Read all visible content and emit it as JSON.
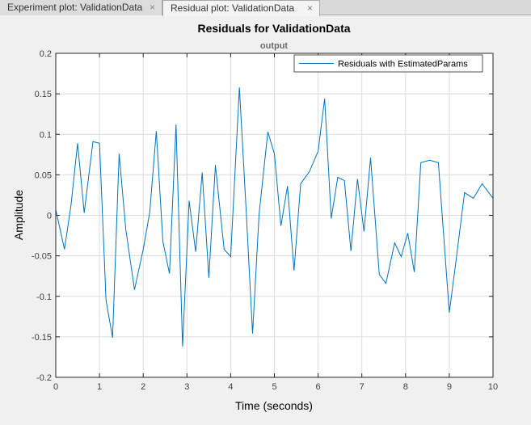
{
  "tabs": [
    {
      "label": "Experiment plot: ValidationData",
      "close_icon": "×"
    },
    {
      "label": "Residual plot: ValidationData",
      "close_icon": "×"
    }
  ],
  "chart_data": {
    "type": "line",
    "title": "Residuals for ValidationData",
    "subtitle": "output",
    "xlabel": "Time (seconds)",
    "ylabel": "Amplitude",
    "xlim": [
      0,
      10
    ],
    "ylim": [
      -0.2,
      0.2
    ],
    "xticks": [
      0,
      1,
      2,
      3,
      4,
      5,
      6,
      7,
      8,
      9,
      10
    ],
    "xtick_labels": [
      "0",
      "1",
      "2",
      "3",
      "4",
      "5",
      "6",
      "7",
      "8",
      "9",
      "10"
    ],
    "yticks": [
      -0.2,
      -0.15,
      -0.1,
      -0.05,
      0,
      0.05,
      0.1,
      0.15,
      0.2
    ],
    "ytick_labels": [
      "-0.2",
      "-0.15",
      "-0.1",
      "-0.05",
      "0",
      "0.05",
      "0.1",
      "0.15",
      "0.2"
    ],
    "grid": true,
    "legend_position": "top-right",
    "line_color": "#0072bd",
    "series": [
      {
        "name": "Residuals with EstimatedParams",
        "x": [
          0,
          0.2,
          0.35,
          0.5,
          0.65,
          0.85,
          1,
          1.15,
          1.3,
          1.45,
          1.6,
          1.8,
          2,
          2.15,
          2.3,
          2.45,
          2.6,
          2.75,
          2.9,
          3.05,
          3.2,
          3.35,
          3.5,
          3.65,
          3.85,
          4,
          4.2,
          4.35,
          4.5,
          4.65,
          4.85,
          5,
          5.15,
          5.3,
          5.45,
          5.6,
          5.8,
          6,
          6.15,
          6.3,
          6.45,
          6.6,
          6.75,
          6.9,
          7.05,
          7.2,
          7.4,
          7.55,
          7.75,
          7.9,
          8.05,
          8.2,
          8.35,
          8.55,
          8.75,
          9,
          9.15,
          9.35,
          9.55,
          9.75,
          10
        ],
        "y": [
          0.007,
          -0.042,
          0.013,
          0.089,
          0.003,
          0.091,
          0.089,
          -0.105,
          -0.151,
          0.076,
          -0.017,
          -0.092,
          -0.042,
          0.004,
          0.104,
          -0.032,
          -0.072,
          0.112,
          -0.162,
          0.018,
          -0.045,
          0.053,
          -0.077,
          0.062,
          -0.042,
          -0.051,
          0.158,
          0.011,
          -0.146,
          0.002,
          0.103,
          0.076,
          -0.013,
          0.036,
          -0.068,
          0.039,
          0.054,
          0.079,
          0.144,
          -0.004,
          0.047,
          0.043,
          -0.044,
          0.045,
          -0.02,
          0.071,
          -0.073,
          -0.084,
          -0.034,
          -0.051,
          -0.022,
          -0.07,
          0.065,
          0.068,
          0.065,
          -0.12,
          -0.058,
          0.028,
          0.021,
          0.039,
          0.021
        ]
      }
    ]
  }
}
